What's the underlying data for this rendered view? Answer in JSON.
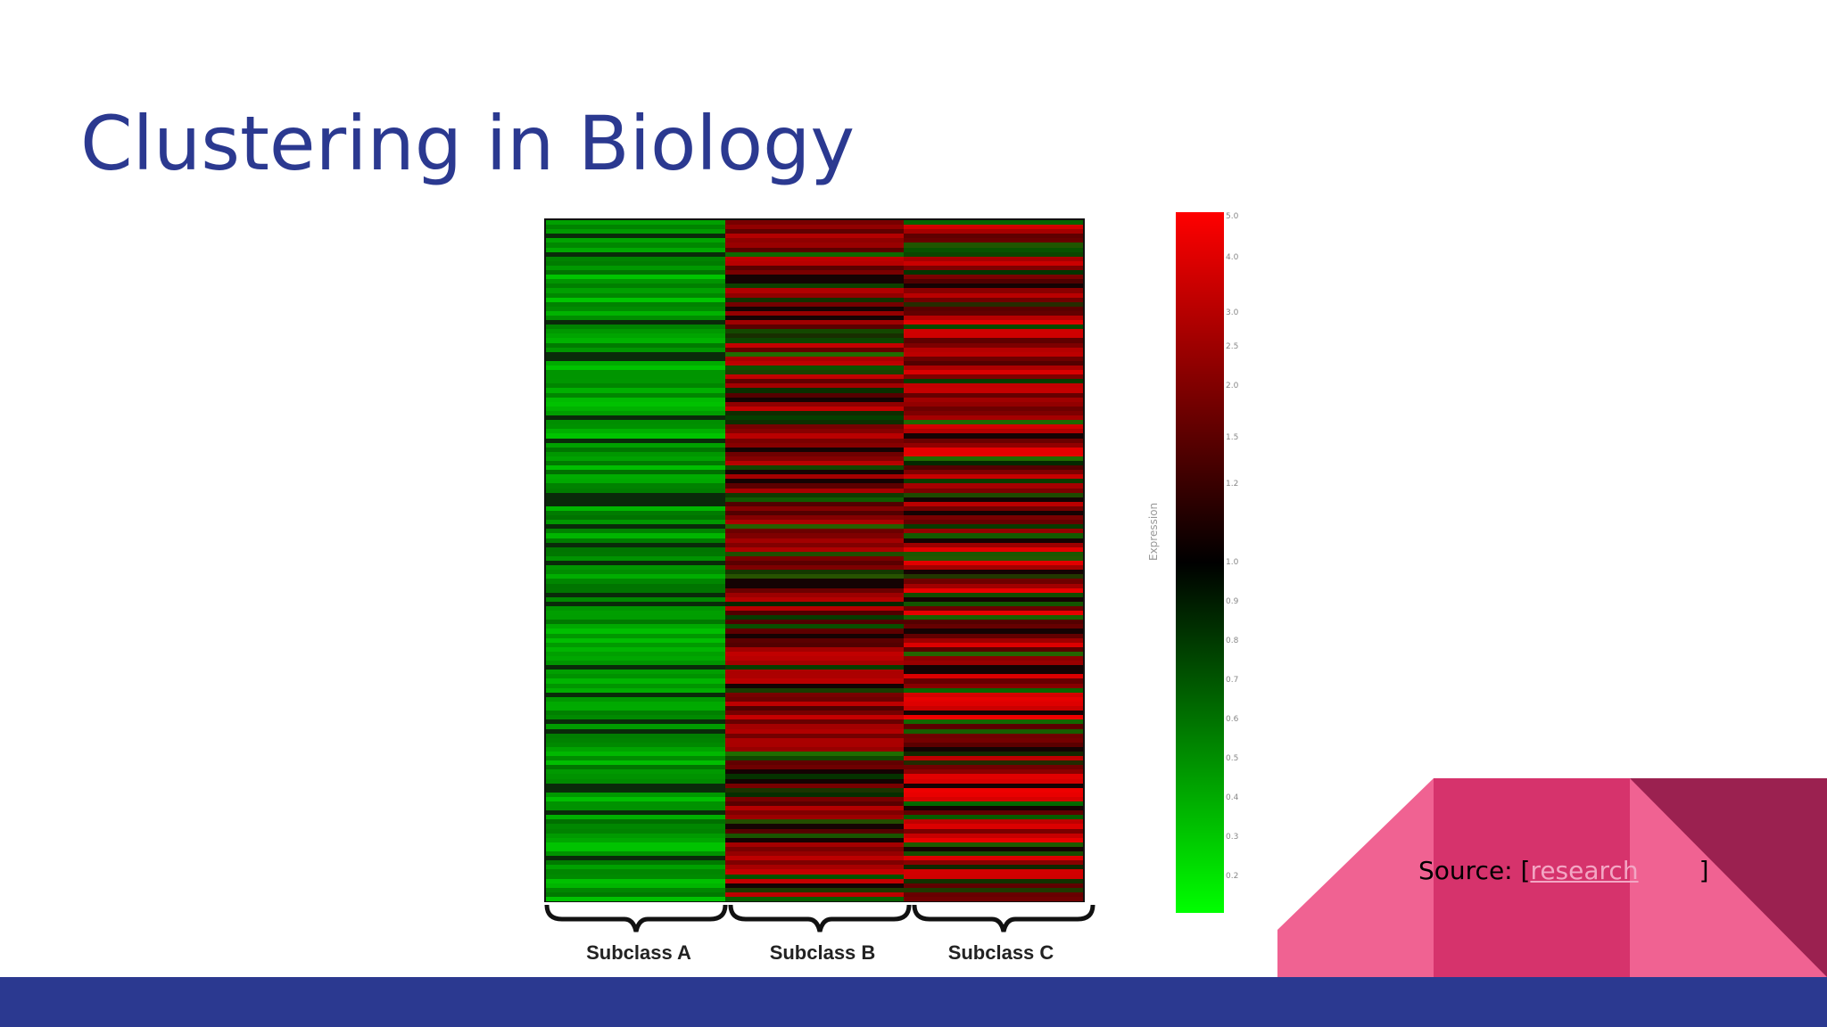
{
  "slide": {
    "title": "Clustering in Biology",
    "source_prefix": "Source: [",
    "source_link": "research",
    "source_suffix": "]"
  },
  "figure": {
    "subclass_labels": [
      "Subclass A",
      "Subclass B",
      "Subclass C"
    ],
    "colorbar_label": "Expression",
    "colorbar_ticks": [
      "5.0",
      "4.0",
      "3.0",
      "2.5",
      "2.0",
      "1.5",
      "1.2",
      "1.0",
      "0.9",
      "0.8",
      "0.7",
      "0.6",
      "0.5",
      "0.4",
      "0.3",
      "0.2"
    ],
    "colorbar_colors": [
      "#ff0000",
      "#000000",
      "#00ff00"
    ]
  },
  "colors": {
    "title": "#2b3990",
    "footer": "#2b3990",
    "deco_pink": "#f06292",
    "deco_mid": "#d6336c",
    "deco_dark": "#9b2150"
  }
}
